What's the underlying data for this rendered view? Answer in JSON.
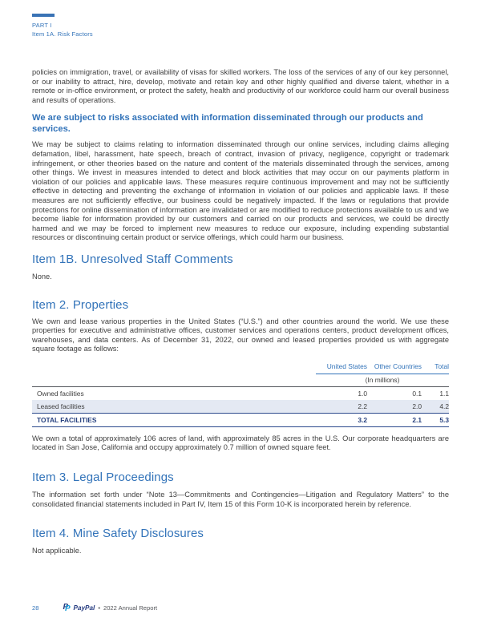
{
  "colors": {
    "accent_blue": "#3273b9",
    "navy": "#253b80",
    "paypal_light_blue": "#179bd7",
    "table_stripe": "#e4e9f3",
    "body_text": "#3f3f3f"
  },
  "header": {
    "part": "PART I",
    "section": "Item 1A. Risk Factors"
  },
  "content": {
    "p1": "policies on immigration, travel, or availability of visas for skilled workers. The loss of the services of any of our key personnel, or our inability to attract, hire, develop, motivate and retain key and other highly qualified and diverse talent, whether in a remote or in-office environment, or protect the safety, health and productivity of our workforce could harm our overall business and results of operations.",
    "risk_heading": "We are subject to risks associated with information disseminated through our products and services.",
    "p2": "We may be subject to claims relating to information disseminated through our online services, including claims alleging defamation, libel, harassment, hate speech, breach of contract, invasion of privacy, negligence, copyright or trademark infringement, or other theories based on the nature and content of the materials disseminated through the services, among other things. We invest in measures intended to detect and block activities that may occur on our payments platform in violation of our policies and applicable laws. These measures require continuous improvement and may not be sufficiently effective in detecting and preventing the exchange of information in violation of our policies and applicable laws. If these measures are not sufficiently effective, our business could be negatively impacted. If the laws or regulations that provide protections for online dissemination of information are invalidated or are modified to reduce protections available to us and we become liable for information provided by our customers and carried on our products and services, we could be directly harmed and we may be forced to implement new measures to reduce our exposure, including expending substantial resources or discontinuing certain product or service offerings, which could harm our business.",
    "item1b": {
      "title": "Item 1B. Unresolved Staff Comments",
      "body": "None."
    },
    "item2": {
      "title": "Item 2. Properties",
      "intro": "We own and lease various properties in the United States (“U.S.”) and other countries around the world. We use these properties for executive and administrative offices, customer services and operations centers, product development offices, warehouses, and data centers. As of December 31, 2022, our owned and leased properties provided us with aggregate square footage as follows:",
      "after_table": "We own a total of approximately 106 acres of land, with approximately 85 acres in the U.S. Our corporate headquarters are located in San Jose, California and occupy approximately 0.7 million of owned square feet."
    },
    "item3": {
      "title": "Item 3. Legal Proceedings",
      "body": "The information set forth under “Note 13—Commitments and Contingencies—Litigation and Regulatory Matters” to the consolidated financial statements included in Part IV, Item 15 of this Form 10-K is incorporated herein by reference."
    },
    "item4": {
      "title": "Item 4. Mine Safety Disclosures",
      "body": "Not applicable."
    }
  },
  "table": {
    "columns": [
      "United States",
      "Other Countries",
      "Total"
    ],
    "units_note": "(In millions)",
    "rows": [
      {
        "label": "Owned facilities",
        "us": "1.0",
        "other": "0.1",
        "total": "1.1"
      },
      {
        "label": "Leased facilities",
        "us": "2.2",
        "other": "2.0",
        "total": "4.2"
      }
    ],
    "total_row": {
      "label": "TOTAL FACILITIES",
      "us": "3.2",
      "other": "2.1",
      "total": "5.3"
    }
  },
  "footer": {
    "page_number": "28",
    "brand": "PayPal",
    "separator": "•",
    "report": "2022 Annual Report"
  }
}
